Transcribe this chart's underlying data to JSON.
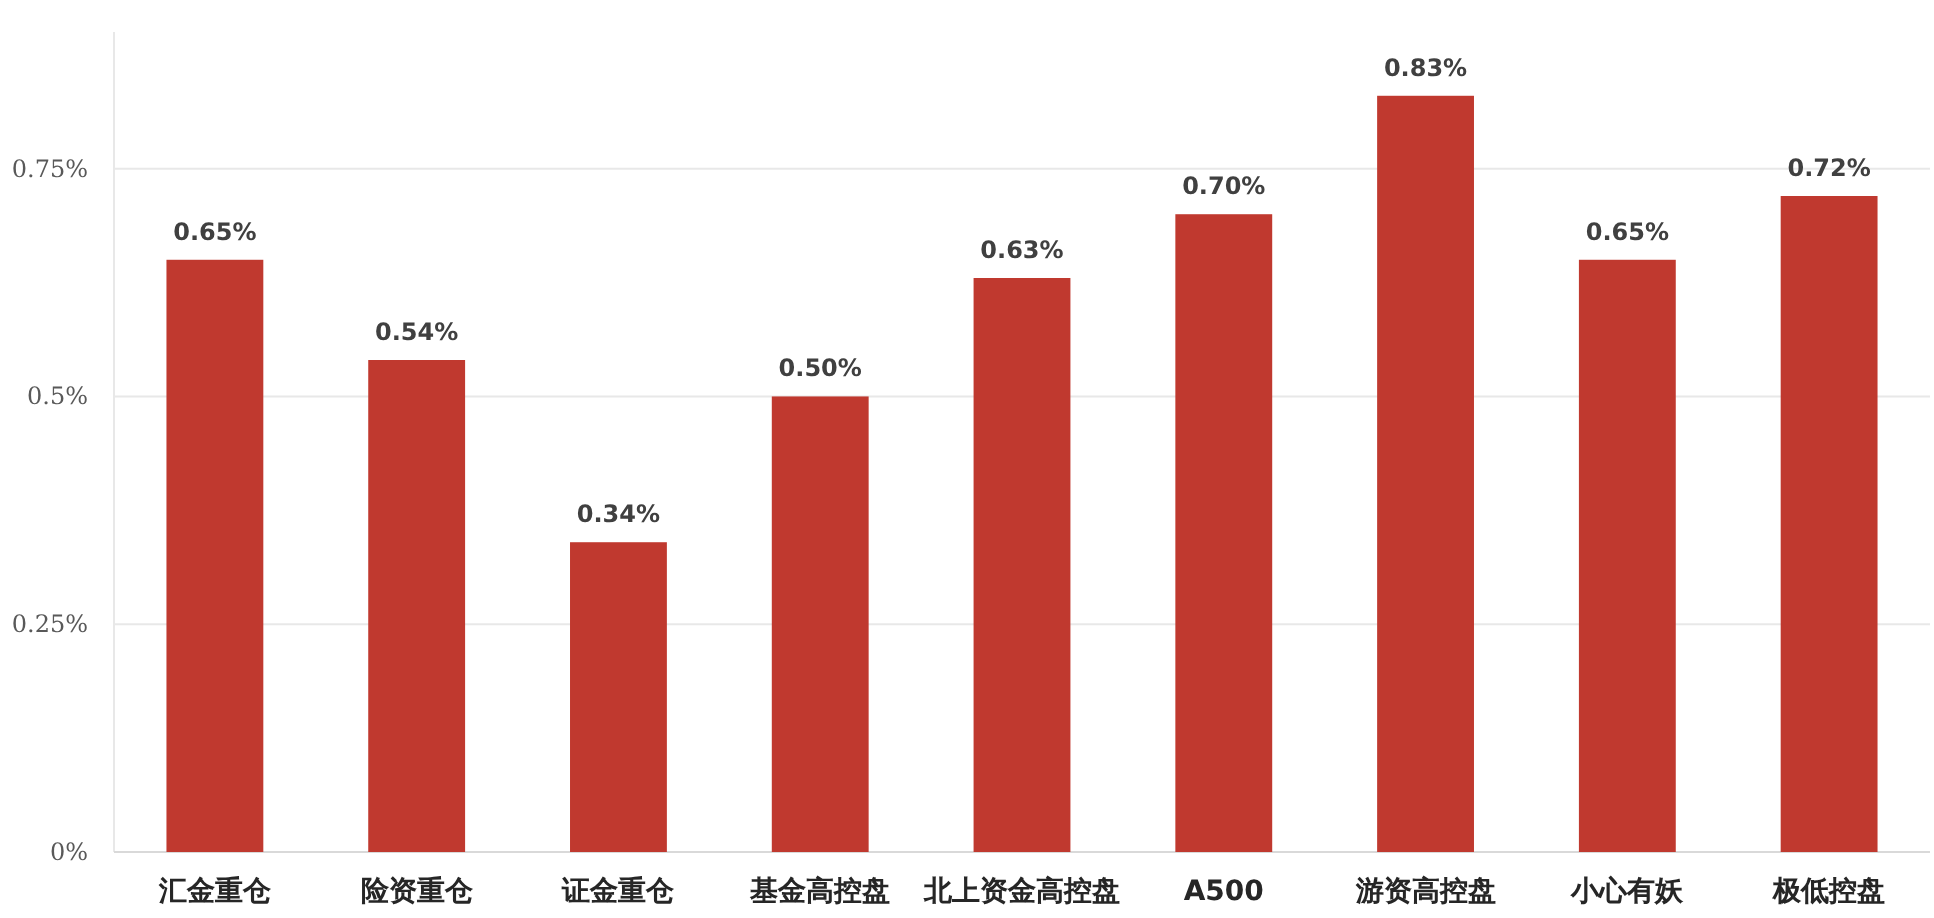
{
  "chart_data": {
    "type": "bar",
    "categories": [
      "汇金重仓",
      "险资重仓",
      "证金重仓",
      "基金高控盘",
      "北上资金高控盘",
      "A500",
      "游资高控盘",
      "小心有妖",
      "极低控盘"
    ],
    "values": [
      0.65,
      0.54,
      0.34,
      0.5,
      0.63,
      0.7,
      0.83,
      0.65,
      0.72
    ],
    "value_labels": [
      "0.65%",
      "0.54%",
      "0.34%",
      "0.50%",
      "0.63%",
      "0.70%",
      "0.83%",
      "0.65%",
      "0.72%"
    ],
    "color": "#c0392f",
    "ylim": [
      0,
      0.9
    ],
    "yticks": [
      {
        "value": 0,
        "label": "0%"
      },
      {
        "value": 0.25,
        "label": "0.25%"
      },
      {
        "value": 0.5,
        "label": "0.5%"
      },
      {
        "value": 0.75,
        "label": "0.75%"
      }
    ],
    "grid": "y"
  }
}
